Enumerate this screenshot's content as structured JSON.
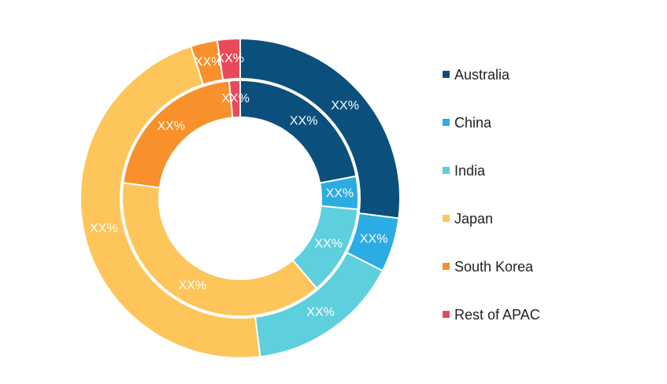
{
  "chart_data": {
    "type": "donut",
    "categories": [
      "Australia",
      "China",
      "India",
      "Japan",
      "South Korea",
      "Rest of APAC"
    ],
    "colors": [
      "#0b4f7c",
      "#2bace2",
      "#5ecfdc",
      "#fdc55a",
      "#f8902b",
      "#e84a5a"
    ],
    "rings": [
      {
        "values": [
          22,
          4.5,
          12.3,
          38.3,
          21.4,
          1.5
        ],
        "value_labels": [
          "XX%",
          "XX%",
          "XX%",
          "XX%",
          "XX%",
          "XX%"
        ]
      },
      {
        "values": [
          27,
          5.5,
          15.5,
          47,
          2.7,
          2.3
        ],
        "value_labels": [
          "XX%",
          "XX%",
          "XX%",
          "XX%",
          "XX%",
          "XX%"
        ]
      }
    ],
    "legend": "right"
  }
}
